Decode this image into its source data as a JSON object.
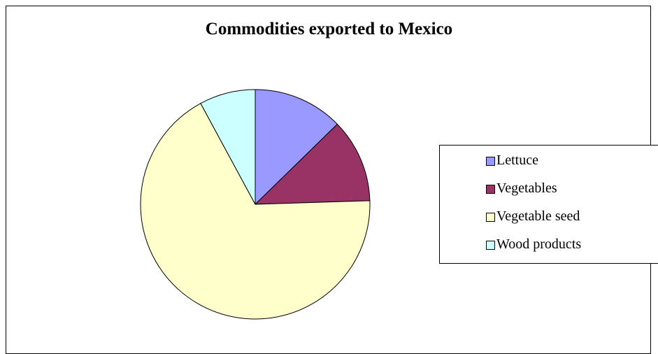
{
  "chart_data": {
    "type": "pie",
    "title": "Commodities exported to Mexico",
    "categories": [
      "Lettuce",
      "Vegetables",
      "Vegetable seed",
      "Wood products"
    ],
    "values": [
      12.7,
      11.8,
      67.6,
      7.9
    ],
    "colors": [
      "#9999ff",
      "#993366",
      "#ffffcc",
      "#ccffff"
    ],
    "legend_position": "right",
    "start_angle_deg": 0,
    "direction": "clockwise"
  }
}
